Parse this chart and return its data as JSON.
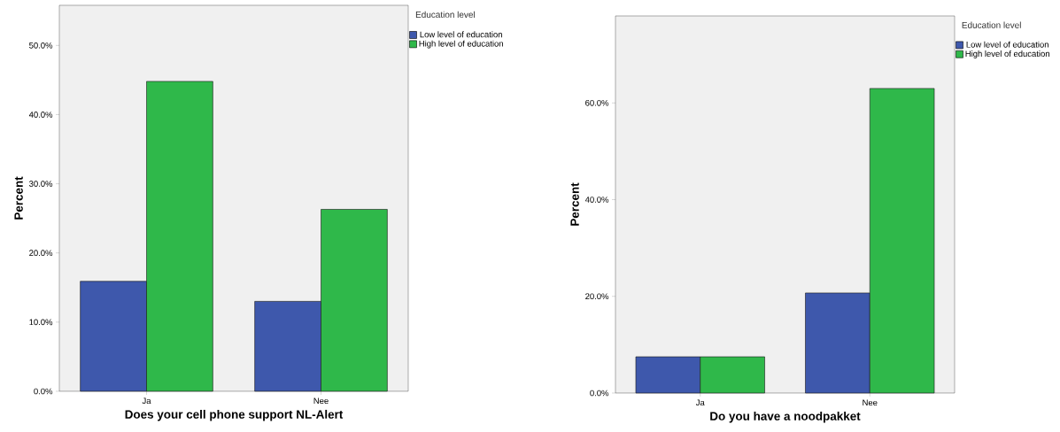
{
  "chart_data": [
    {
      "type": "bar",
      "categories": [
        "Ja",
        "Nee"
      ],
      "xlabel": "Does your cell phone support NL-Alert",
      "ylabel": "Percent",
      "legend_title": "Education level",
      "legend": "top right",
      "series": [
        {
          "name": "Low level of education",
          "color": "#3e58ac",
          "values": [
            15.9,
            13.0
          ]
        },
        {
          "name": "High level of education",
          "color": "#2fb84a",
          "values": [
            44.8,
            26.3
          ]
        }
      ],
      "ylim": [
        0,
        55.8
      ],
      "yticks": [
        {
          "value": 0,
          "label": "0.0%"
        },
        {
          "value": 10,
          "label": "10.0%"
        },
        {
          "value": 20,
          "label": "20.0%"
        },
        {
          "value": 30,
          "label": "30.0%"
        },
        {
          "value": 40,
          "label": "40.0%"
        },
        {
          "value": 50,
          "label": "50.0%"
        }
      ]
    },
    {
      "type": "bar",
      "categories": [
        "Ja",
        "Nee"
      ],
      "xlabel": "Do you have a noodpakket",
      "ylabel": "Percent",
      "legend_title": "Education level",
      "legend": "top right",
      "series": [
        {
          "name": "Low level of education",
          "color": "#3e58ac",
          "values": [
            7.5,
            20.7
          ]
        },
        {
          "name": "High level of education",
          "color": "#2fb84a",
          "values": [
            7.5,
            63.0
          ]
        }
      ],
      "ylim": [
        0,
        78
      ],
      "yticks": [
        {
          "value": 0,
          "label": "0.0%"
        },
        {
          "value": 20,
          "label": "20.0%"
        },
        {
          "value": 40,
          "label": "40.0%"
        },
        {
          "value": 60,
          "label": "60.0%"
        }
      ]
    }
  ]
}
